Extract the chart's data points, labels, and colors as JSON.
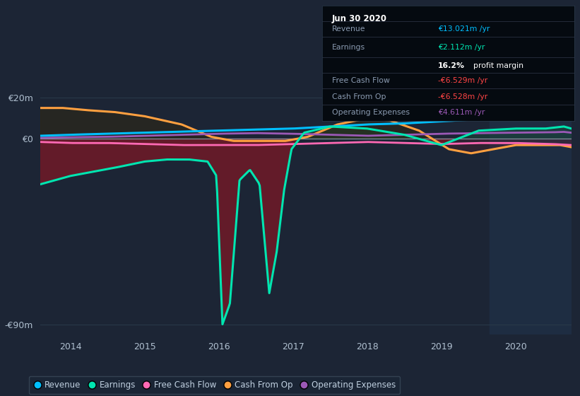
{
  "bg_color": "#1c2535",
  "plot_bg_color": "#1c2535",
  "shaded_bg_color": "#1e2d42",
  "ylim": [
    -95,
    28
  ],
  "xlim": [
    2013.6,
    2020.75
  ],
  "yticks": [
    20,
    0,
    -90
  ],
  "ytick_labels": [
    "€20m",
    "€0",
    "-€90m"
  ],
  "xticks": [
    2014,
    2015,
    2016,
    2017,
    2018,
    2019,
    2020
  ],
  "legend": [
    {
      "label": "Revenue",
      "color": "#00bfff"
    },
    {
      "label": "Earnings",
      "color": "#00e5b0"
    },
    {
      "label": "Free Cash Flow",
      "color": "#ff69b4"
    },
    {
      "label": "Cash From Op",
      "color": "#ffa040"
    },
    {
      "label": "Operating Expenses",
      "color": "#9b59b6"
    }
  ],
  "shaded_x_start": 2019.65,
  "revenue_color": "#00bfff",
  "earnings_color": "#00e5b0",
  "free_cashflow_color": "#ff69b4",
  "cash_from_op_color": "#ffa040",
  "op_expenses_color": "#9b59b6",
  "fill_negative_color": "#6b1a28",
  "fill_positive_color": "#1a4a3a",
  "info_box_bg": "#050a10",
  "info_box_border": "#2a3a4a"
}
